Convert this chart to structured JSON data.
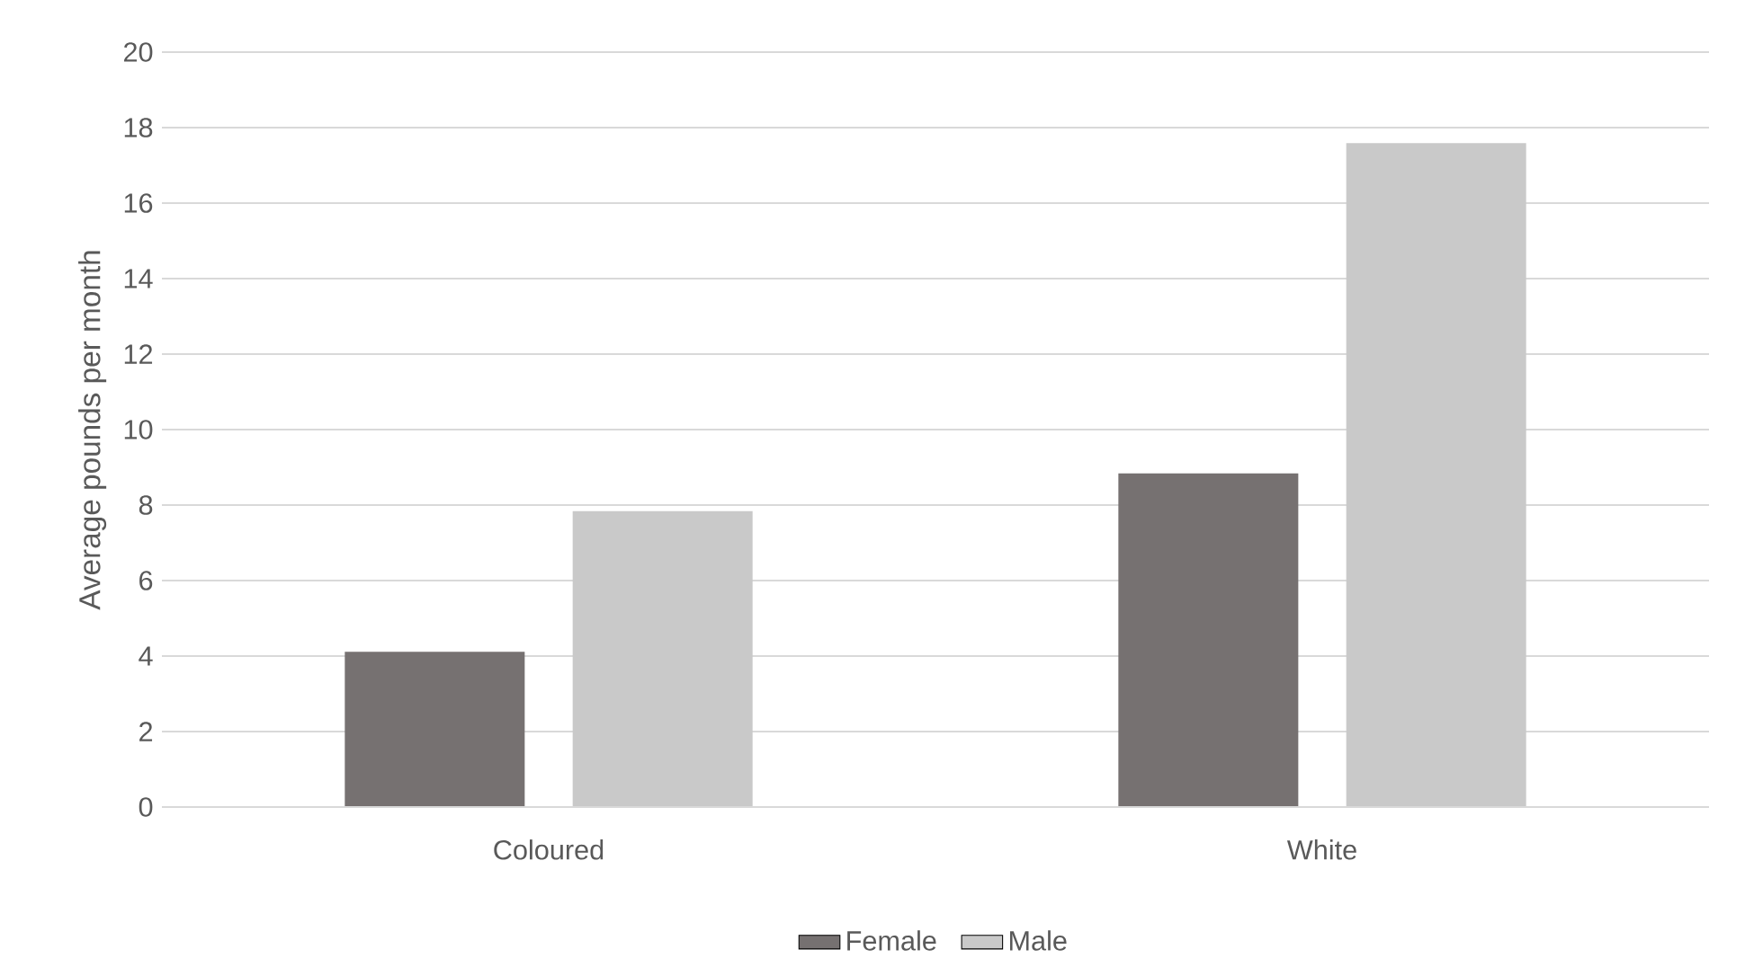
{
  "chart_data": {
    "type": "bar",
    "ylabel": "Average pounds per month",
    "categories": [
      "Coloured",
      "White"
    ],
    "series": [
      {
        "name": "Female",
        "color": "#767171",
        "values": [
          4.11,
          8.84
        ]
      },
      {
        "name": "Male",
        "color": "#c9c9c9",
        "values": [
          7.84,
          17.59
        ]
      }
    ],
    "ylim": [
      0,
      20
    ],
    "yticks": [
      0,
      2,
      4,
      6,
      8,
      10,
      12,
      14,
      16,
      18,
      20
    ],
    "grid": "y",
    "legend": "bottom"
  }
}
